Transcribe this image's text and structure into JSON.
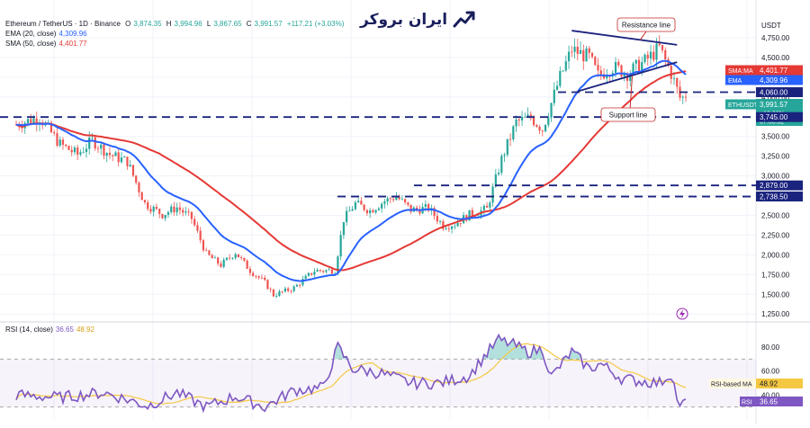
{
  "header": {
    "pair": "Ethereum / TetherUS · 1D · Binance",
    "ohlc": [
      {
        "label": "O",
        "value": "3,874.35"
      },
      {
        "label": "H",
        "value": "3,994.96"
      },
      {
        "label": "L",
        "value": "3,867.65"
      },
      {
        "label": "C",
        "value": "3,991.57"
      }
    ],
    "change": "+117.21 (+3.03%)",
    "ema_label": "EMA (20, close)",
    "ema_value": "4,309.96",
    "sma_label": "SMA (50, close)",
    "sma_value": "4,401.77"
  },
  "brand": {
    "text": "ایران بروکر"
  },
  "colors": {
    "up": "#26a69a",
    "down": "#ef5350",
    "ema": "#2962ff",
    "sma": "#e53935",
    "rsi": "#7e57c2",
    "rsi_ma": "#f5c842",
    "level": "#1a237e",
    "trend": "#1a237e"
  },
  "chart_data": [
    {
      "type": "candlestick",
      "title": "Ethereum / TetherUS · 1D · Binance",
      "y_axis_label": "USDT",
      "ylim": [
        1150,
        5000
      ],
      "y_ticks": [
        4750,
        4500,
        4250,
        4000,
        3750,
        3500,
        3250,
        3000,
        2750,
        2500,
        2250,
        2000,
        1750,
        1500,
        1250
      ],
      "price_path_keypoints": [
        [
          0,
          3650
        ],
        [
          8,
          3740
        ],
        [
          15,
          3400
        ],
        [
          21,
          3270
        ],
        [
          26,
          3450
        ],
        [
          32,
          3270
        ],
        [
          38,
          3180
        ],
        [
          44,
          2650
        ],
        [
          50,
          2510
        ],
        [
          55,
          2600
        ],
        [
          60,
          2460
        ],
        [
          65,
          2010
        ],
        [
          70,
          1870
        ],
        [
          75,
          2030
        ],
        [
          80,
          1800
        ],
        [
          85,
          1650
        ],
        [
          88,
          1490
        ],
        [
          95,
          1580
        ],
        [
          102,
          1800
        ],
        [
          109,
          1800
        ],
        [
          112,
          2450
        ],
        [
          116,
          2650
        ],
        [
          121,
          2560
        ],
        [
          126,
          2680
        ],
        [
          130,
          2740
        ],
        [
          135,
          2570
        ],
        [
          141,
          2590
        ],
        [
          146,
          2370
        ],
        [
          150,
          2390
        ],
        [
          155,
          2510
        ],
        [
          161,
          2580
        ],
        [
          166,
          3210
        ],
        [
          171,
          3680
        ],
        [
          176,
          3740
        ],
        [
          180,
          3590
        ],
        [
          186,
          4250
        ],
        [
          190,
          4600
        ],
        [
          196,
          4500
        ],
        [
          199,
          4270
        ],
        [
          204,
          4380
        ],
        [
          209,
          4300
        ],
        [
          215,
          4450
        ],
        [
          220,
          4620
        ],
        [
          224,
          4300
        ],
        [
          227,
          3990
        ]
      ],
      "ema_20_last": 4309.96,
      "sma_50_last": 4401.77,
      "horizontal_levels": [
        4060,
        3745,
        2879,
        2738.5
      ],
      "resistance_line": [
        [
          190,
          4840
        ],
        [
          226,
          4660
        ]
      ],
      "support_line": [
        [
          192,
          4070
        ],
        [
          226,
          4440
        ]
      ],
      "annotations": [
        "Resistance line",
        "Support line"
      ],
      "price_labels": [
        {
          "text": "SMA:MA",
          "value": "4,401.77"
        },
        {
          "text": "EMA",
          "value": "4,309.96"
        },
        {
          "text": "",
          "value": "4,060.00"
        },
        {
          "text": "ETHUSDT",
          "value": "3,991.57"
        },
        {
          "text": "",
          "value": "+10.06%"
        },
        {
          "text": "",
          "value": "07:08:32"
        },
        {
          "text": "",
          "value": "3,745.00"
        },
        {
          "text": "",
          "value": "2,879.00"
        },
        {
          "text": "",
          "value": "2,738.50"
        }
      ]
    },
    {
      "type": "line",
      "title": "RSI (14, close)",
      "rsi_value": "36.65",
      "rsi_ma_value": "48.92",
      "ylim": [
        20,
        95
      ],
      "y_ticks": [
        80,
        60,
        40
      ],
      "band": [
        30,
        70
      ],
      "rsi_path_keypoints": [
        [
          0,
          40
        ],
        [
          15,
          38
        ],
        [
          30,
          42
        ],
        [
          45,
          31
        ],
        [
          55,
          42
        ],
        [
          65,
          30
        ],
        [
          75,
          39
        ],
        [
          85,
          30
        ],
        [
          95,
          44
        ],
        [
          105,
          46
        ],
        [
          110,
          80
        ],
        [
          115,
          62
        ],
        [
          125,
          58
        ],
        [
          135,
          50
        ],
        [
          145,
          50
        ],
        [
          155,
          56
        ],
        [
          160,
          72
        ],
        [
          165,
          86
        ],
        [
          170,
          82
        ],
        [
          175,
          76
        ],
        [
          180,
          78
        ],
        [
          183,
          55
        ],
        [
          190,
          76
        ],
        [
          196,
          62
        ],
        [
          200,
          66
        ],
        [
          207,
          54
        ],
        [
          212,
          52
        ],
        [
          220,
          50
        ],
        [
          224,
          58
        ],
        [
          227,
          28
        ],
        [
          229,
          36.65
        ]
      ],
      "labels": [
        {
          "text": "RSI-based MA",
          "value": "48.92"
        },
        {
          "text": "RSI",
          "value": "36.65"
        }
      ]
    }
  ]
}
